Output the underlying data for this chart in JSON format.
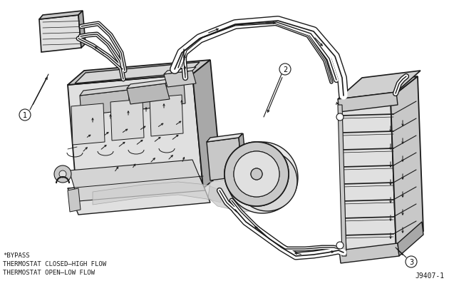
{
  "bg_color": "#ffffff",
  "text_color": "#000000",
  "line_color": "#1a1a1a",
  "legend_lines": [
    "*BYPASS",
    "THERMOSTAT CLOSED—HIGH FLOW",
    "THERMOSTAT OPEN—LOW FLOW"
  ],
  "fig_id": "J9407-1",
  "figsize": [
    6.3,
    4.02
  ],
  "dpi": 100,
  "gray_light": "#e0e0e0",
  "gray_mid": "#c8c8c8",
  "gray_dark": "#a8a8a8",
  "gray_shade": "#b8b8b8"
}
